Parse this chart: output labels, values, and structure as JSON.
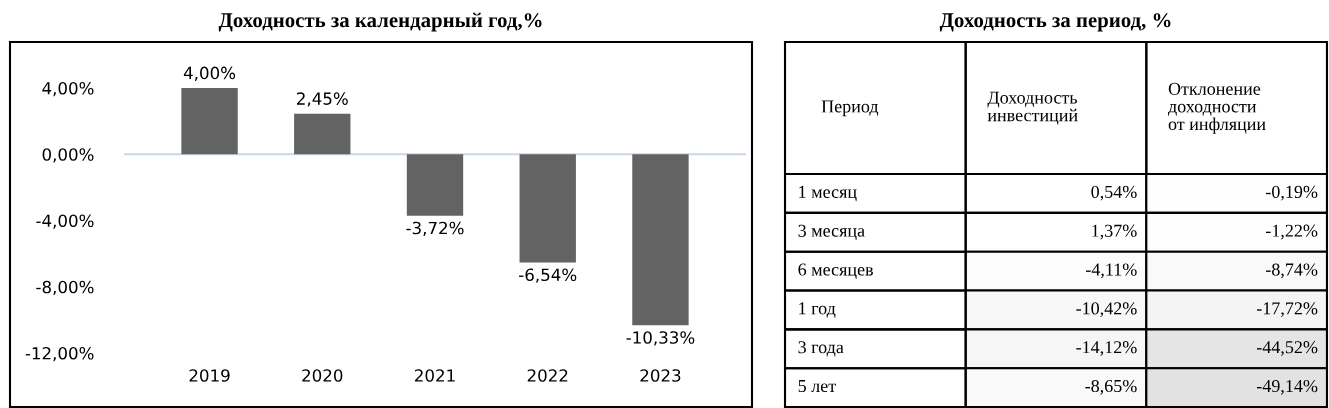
{
  "chart_data": [
    {
      "type": "bar",
      "title": "Доходность за календарный год,%",
      "categories": [
        "2019",
        "2020",
        "2021",
        "2022",
        "2023"
      ],
      "values": [
        4.0,
        2.45,
        -3.72,
        -6.54,
        -10.33
      ],
      "color": "#636363",
      "value_labels": [
        "4,00%",
        "2,45%",
        "-3,72%",
        "-6,54%",
        "-10,33%"
      ],
      "ylim": [
        -12,
        4
      ],
      "yticks": [
        {
          "value": 4,
          "label": "4,00%"
        },
        {
          "value": 0,
          "label": "0,00%"
        },
        {
          "value": -4,
          "label": "-4,00%"
        },
        {
          "value": -8,
          "label": "-8,00%"
        },
        {
          "value": -12,
          "label": "-12,00%"
        }
      ],
      "legend": false
    },
    {
      "type": "heatmap",
      "title": "Доходность за период, %",
      "ylabel": "Период",
      "categories": [
        "Доходность\nинвестиций",
        "Отклонение\nдоходности\nот инфляции"
      ],
      "y_categories": [
        "1 месяц",
        "3 месяца",
        "6 месяцев",
        "1 год",
        "3 года",
        "5 лет"
      ],
      "cells": [
        [
          0.54,
          -0.19
        ],
        [
          1.37,
          -1.22
        ],
        [
          -4.11,
          -8.74
        ],
        [
          -10.42,
          -17.72
        ],
        [
          -14.12,
          -44.52
        ],
        [
          -8.65,
          -49.14
        ]
      ],
      "cell_labels": [
        [
          "0,54%",
          "-0,19%"
        ],
        [
          "1,37%",
          "-1,22%"
        ],
        [
          "-4,11%",
          "-8,74%"
        ],
        [
          "-10,42%",
          "-17,72%"
        ],
        [
          "-14,12%",
          "-44,52%"
        ],
        [
          "-8,65%",
          "-49,14%"
        ]
      ]
    }
  ]
}
